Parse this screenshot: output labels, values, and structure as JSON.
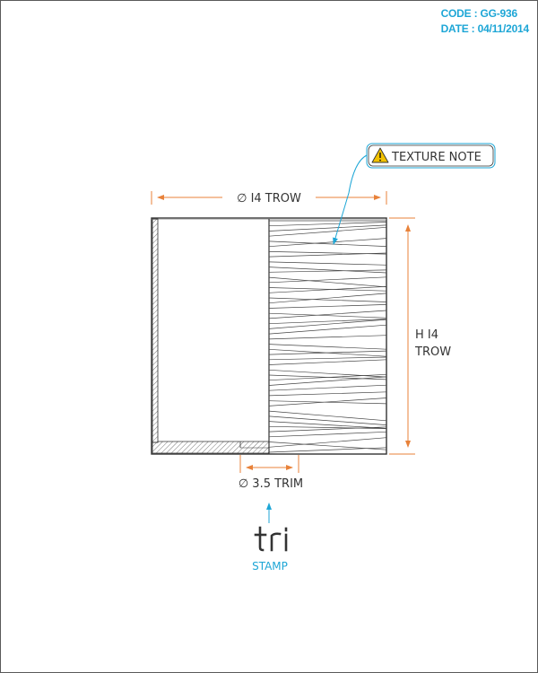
{
  "colors": {
    "ink": "#333333",
    "dimension": "#e8823a",
    "annotation": "#1da6d6",
    "warning": "#f2c200"
  },
  "header": {
    "code": "CODE : GG-936",
    "date": "DATE : 04/11/2014"
  },
  "note": {
    "icon": "warning-triangle-icon",
    "label": "TEXTURE NOTE"
  },
  "dimensions": {
    "top_width": "∅ I4 TROW",
    "height_line1": "H I4",
    "height_line2": "TROW",
    "bottom_trim": "∅ 3.5 TRIM"
  },
  "stamp": {
    "logo_text": "tri",
    "label": "STAMP"
  }
}
